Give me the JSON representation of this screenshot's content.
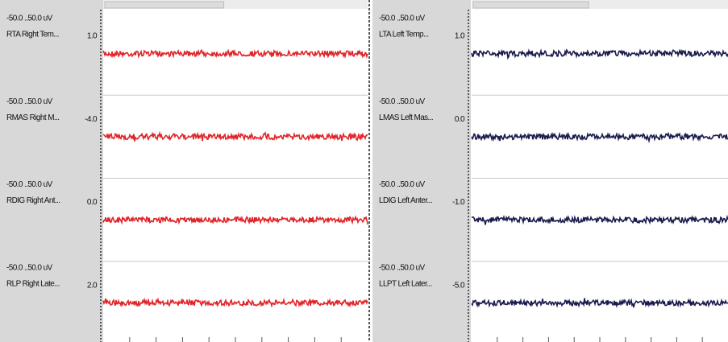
{
  "panels": [
    {
      "trace_color": "#e0252a",
      "channels": [
        {
          "range": "-50.0 ..50.0 uV",
          "name": "RTA Right Tem...",
          "value": "1.0"
        },
        {
          "range": "-50.0 ..50.0 uV",
          "name": "RMAS Right M...",
          "value": "-4.0"
        },
        {
          "range": "-50.0 ..50.0 uV",
          "name": "RDIG Right Ant...",
          "value": "0.0"
        },
        {
          "range": "-50.0 ..50.0 uV",
          "name": "RLP Right Late...",
          "value": "2.0"
        }
      ]
    },
    {
      "trace_color": "#1b1c4d",
      "channels": [
        {
          "range": "-50.0 ..50.0 uV",
          "name": "LTA Left Temp...",
          "value": "1.0"
        },
        {
          "range": "-50.0 ..50.0 uV",
          "name": "LMAS Left Mas...",
          "value": "0.0"
        },
        {
          "range": "-50.0 ..50.0 uV",
          "name": "LDIG Left Anter...",
          "value": "-1.0"
        },
        {
          "range": "-50.0 ..50.0 uV",
          "name": "LLPT Left Later...",
          "value": "-5.0"
        }
      ]
    }
  ]
}
